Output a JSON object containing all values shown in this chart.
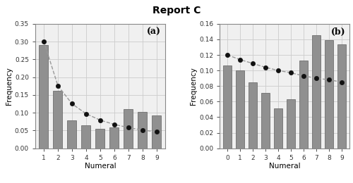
{
  "title": "Report C",
  "panel_a": {
    "label": "(a)",
    "bar_x": [
      1,
      2,
      3,
      4,
      5,
      6,
      7,
      8,
      9
    ],
    "bar_heights": [
      0.29,
      0.162,
      0.078,
      0.064,
      0.055,
      0.058,
      0.11,
      0.103,
      0.092
    ],
    "dot_x": [
      1,
      2,
      3,
      4,
      5,
      6,
      7,
      8,
      9
    ],
    "dot_y": [
      0.301,
      0.176,
      0.125,
      0.097,
      0.079,
      0.067,
      0.058,
      0.051,
      0.046
    ],
    "xlabel": "Numeral",
    "ylabel": "Frequency",
    "ylim": [
      0,
      0.35
    ],
    "yticks": [
      0,
      0.05,
      0.1,
      0.15,
      0.2,
      0.25,
      0.3,
      0.35
    ],
    "xticks": [
      1,
      2,
      3,
      4,
      5,
      6,
      7,
      8,
      9
    ]
  },
  "panel_b": {
    "label": "(b)",
    "bar_x": [
      0,
      1,
      2,
      3,
      4,
      5,
      6,
      7,
      8,
      9
    ],
    "bar_heights": [
      0.106,
      0.1,
      0.085,
      0.071,
      0.051,
      0.063,
      0.113,
      0.145,
      0.139,
      0.134
    ],
    "dot_x": [
      0,
      1,
      2,
      3,
      4,
      5,
      6,
      7,
      8,
      9
    ],
    "dot_y": [
      0.12,
      0.114,
      0.109,
      0.104,
      0.1,
      0.097,
      0.093,
      0.09,
      0.088,
      0.085
    ],
    "xlabel": "Numeral",
    "ylabel": "Frequency",
    "ylim": [
      0,
      0.16
    ],
    "yticks": [
      0,
      0.02,
      0.04,
      0.06,
      0.08,
      0.1,
      0.12,
      0.14,
      0.16
    ],
    "xticks": [
      0,
      1,
      2,
      3,
      4,
      5,
      6,
      7,
      8,
      9
    ]
  },
  "bar_color": "#909090",
  "bar_edgecolor": "#606060",
  "dot_color": "#111111",
  "dot_line_color": "#999999",
  "background_color": "#ffffff",
  "title_fontsize": 10,
  "axis_fontsize": 7.5,
  "tick_fontsize": 6.5,
  "label_fontsize": 9,
  "spine_color": "#888888",
  "grid_color": "#cccccc"
}
